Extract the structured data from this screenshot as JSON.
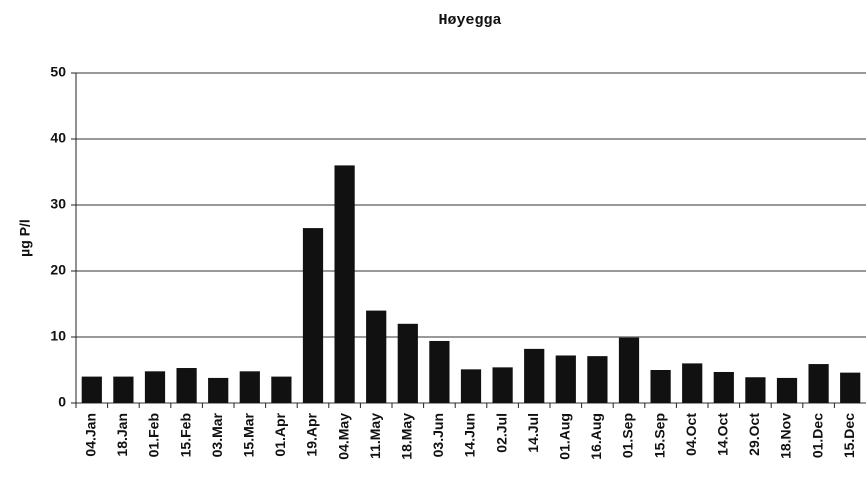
{
  "chart_data": {
    "type": "bar",
    "title": "Høyegga",
    "y_label": "µg P/l",
    "categories": [
      "04.Jan",
      "18.Jan",
      "01.Feb",
      "15.Feb",
      "03.Mar",
      "15.Mar",
      "01.Apr",
      "19.Apr",
      "04.May",
      "11.May",
      "18.May",
      "03.Jun",
      "14.Jun",
      "02.Jul",
      "14.Jul",
      "01.Aug",
      "16.Aug",
      "01.Sep",
      "15.Sep",
      "04.Oct",
      "14.Oct",
      "29.Oct",
      "18.Nov",
      "01.Dec",
      "15.Dec"
    ],
    "values": [
      4,
      4,
      4.8,
      5.3,
      3.8,
      4.8,
      4,
      26.5,
      36,
      14,
      12,
      9.4,
      5.1,
      5.4,
      8.2,
      7.2,
      7.1,
      9.9,
      5,
      6,
      4.7,
      3.9,
      3.8,
      5.9,
      4.6
    ],
    "color": "#111111",
    "ylim": [
      0,
      50
    ],
    "yticks": [
      0,
      10,
      20,
      30,
      40,
      50
    ],
    "grid": true
  }
}
